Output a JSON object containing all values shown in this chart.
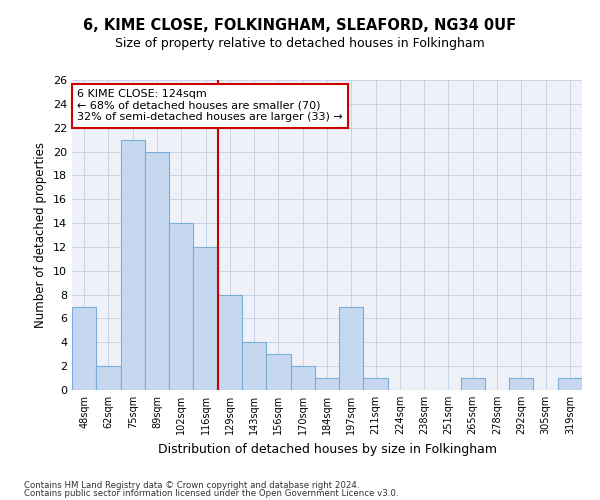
{
  "title": "6, KIME CLOSE, FOLKINGHAM, SLEAFORD, NG34 0UF",
  "subtitle": "Size of property relative to detached houses in Folkingham",
  "xlabel": "Distribution of detached houses by size in Folkingham",
  "ylabel": "Number of detached properties",
  "categories": [
    "48sqm",
    "62sqm",
    "75sqm",
    "89sqm",
    "102sqm",
    "116sqm",
    "129sqm",
    "143sqm",
    "156sqm",
    "170sqm",
    "184sqm",
    "197sqm",
    "211sqm",
    "224sqm",
    "238sqm",
    "251sqm",
    "265sqm",
    "278sqm",
    "292sqm",
    "305sqm",
    "319sqm"
  ],
  "values": [
    7,
    2,
    21,
    20,
    14,
    12,
    8,
    4,
    3,
    2,
    1,
    7,
    1,
    0,
    0,
    0,
    1,
    0,
    1,
    0,
    1
  ],
  "bar_color": "#c5d8f0",
  "bar_edge_color": "#7aaed6",
  "vline_x": 5.5,
  "vline_color": "#cc0000",
  "annotation_title": "6 KIME CLOSE: 124sqm",
  "annotation_line1": "← 68% of detached houses are smaller (70)",
  "annotation_line2": "32% of semi-detached houses are larger (33) →",
  "annotation_box_color": "#cc0000",
  "ylim": [
    0,
    26
  ],
  "yticks": [
    0,
    2,
    4,
    6,
    8,
    10,
    12,
    14,
    16,
    18,
    20,
    22,
    24,
    26
  ],
  "grid_color": "#c8d4e8",
  "footer1": "Contains HM Land Registry data © Crown copyright and database right 2024.",
  "footer2": "Contains public sector information licensed under the Open Government Licence v3.0.",
  "bg_color": "#eef2f8"
}
